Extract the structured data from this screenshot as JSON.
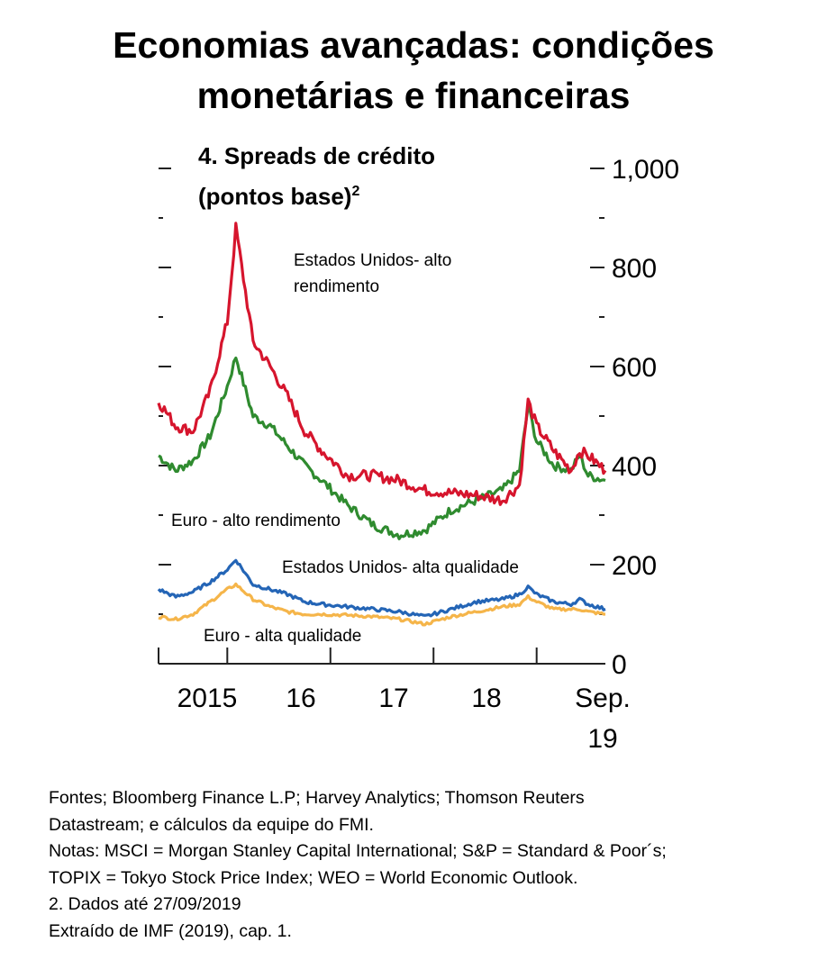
{
  "header": {
    "title_line1": "Economias avançadas: condições",
    "title_line2": "monetárias e financeiras"
  },
  "chart_data": {
    "type": "line",
    "title": "4. Spreads de crédito",
    "subtitle_text": "(pontos base)",
    "subtitle_sup": "2",
    "y_ticks": [
      "1,000",
      "800",
      "600",
      "400",
      "200",
      "0"
    ],
    "y_tick_values": [
      1000,
      800,
      600,
      400,
      200,
      0
    ],
    "ylim": [
      0,
      1000
    ],
    "x_ticks": [
      "2015",
      "16",
      "17",
      "18",
      "Sep."
    ],
    "x_tick_extra": "19",
    "x_range": [
      "2015-05",
      "2019-09"
    ],
    "legend": "inline-annotations",
    "colors": {
      "us_high_yield": "#d6152d",
      "euro_high_yield": "#2f8b2f",
      "us_high_grade": "#2465b6",
      "euro_high_grade": "#f5b54a"
    },
    "series": [
      {
        "name": "Estados Unidos- alto rendimento",
        "label_line1": "Estados Unidos- alto",
        "label_line2": "rendimento",
        "x": [
          "2015-05",
          "2015-07",
          "2015-09",
          "2015-11",
          "2016-01",
          "2016-02",
          "2016-04",
          "2016-06",
          "2016-08",
          "2016-10",
          "2016-12",
          "2017-03",
          "2017-06",
          "2017-09",
          "2017-12",
          "2018-03",
          "2018-06",
          "2018-09",
          "2018-11",
          "2018-12",
          "2019-01",
          "2019-03",
          "2019-05",
          "2019-06",
          "2019-07",
          "2019-09"
        ],
        "values": [
          530,
          480,
          470,
          550,
          690,
          880,
          650,
          600,
          540,
          470,
          430,
          380,
          380,
          370,
          350,
          345,
          340,
          330,
          360,
          530,
          480,
          430,
          390,
          430,
          420,
          390
        ]
      },
      {
        "name": "Euro - alto rendimento",
        "x": [
          "2015-05",
          "2015-07",
          "2015-09",
          "2015-11",
          "2016-01",
          "2016-02",
          "2016-04",
          "2016-06",
          "2016-08",
          "2016-10",
          "2016-12",
          "2017-03",
          "2017-06",
          "2017-09",
          "2017-12",
          "2018-03",
          "2018-06",
          "2018-09",
          "2018-11",
          "2018-12",
          "2019-01",
          "2019-03",
          "2019-05",
          "2019-06",
          "2019-07",
          "2019-09"
        ],
        "values": [
          420,
          390,
          410,
          460,
          560,
          620,
          500,
          480,
          440,
          400,
          370,
          320,
          280,
          260,
          270,
          310,
          330,
          350,
          390,
          520,
          450,
          400,
          390,
          420,
          380,
          370
        ]
      },
      {
        "name": "Estados Unidos- alta qualidade",
        "x": [
          "2015-05",
          "2015-07",
          "2015-09",
          "2015-11",
          "2016-01",
          "2016-02",
          "2016-04",
          "2016-06",
          "2016-08",
          "2016-10",
          "2016-12",
          "2017-03",
          "2017-06",
          "2017-09",
          "2017-12",
          "2018-03",
          "2018-06",
          "2018-09",
          "2018-11",
          "2018-12",
          "2019-01",
          "2019-03",
          "2019-05",
          "2019-06",
          "2019-07",
          "2019-09"
        ],
        "values": [
          150,
          135,
          145,
          165,
          190,
          210,
          160,
          150,
          140,
          125,
          120,
          115,
          110,
          105,
          95,
          110,
          125,
          130,
          140,
          155,
          140,
          125,
          120,
          130,
          120,
          110
        ]
      },
      {
        "name": "Euro - alta qualidade",
        "x": [
          "2015-05",
          "2015-07",
          "2015-09",
          "2015-11",
          "2016-01",
          "2016-02",
          "2016-04",
          "2016-06",
          "2016-08",
          "2016-10",
          "2016-12",
          "2017-03",
          "2017-06",
          "2017-09",
          "2017-12",
          "2018-03",
          "2018-06",
          "2018-09",
          "2018-11",
          "2018-12",
          "2019-01",
          "2019-03",
          "2019-05",
          "2019-06",
          "2019-07",
          "2019-09"
        ],
        "values": [
          95,
          90,
          100,
          125,
          150,
          160,
          130,
          115,
          105,
          100,
          100,
          98,
          95,
          90,
          80,
          95,
          105,
          115,
          120,
          135,
          125,
          110,
          110,
          110,
          105,
          100
        ]
      }
    ]
  },
  "footer": {
    "lines": [
      "Fontes; Bloomberg Finance L.P; Harvey Analytics; Thomson Reuters",
      "Datastream; e cálculos da equipe do FMI.",
      "Notas: MSCI = Morgan Stanley Capital International; S&P = Standard & Poor´s;",
      "TOPIX = Tokyo Stock Price Index; WEO = World Economic Outlook.",
      "2. Dados até 27/09/2019",
      "Extraído de IMF (2019), cap. 1."
    ]
  }
}
